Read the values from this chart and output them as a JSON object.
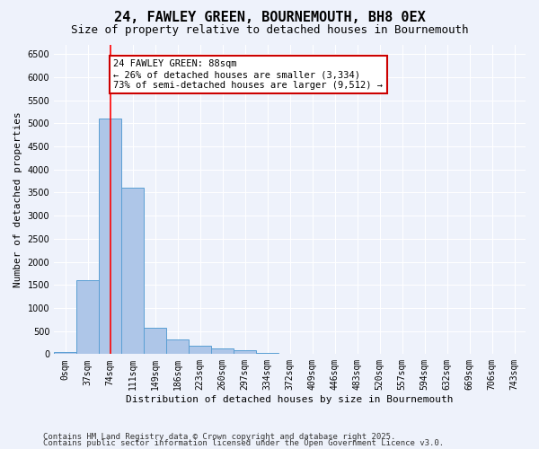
{
  "title1": "24, FAWLEY GREEN, BOURNEMOUTH, BH8 0EX",
  "title2": "Size of property relative to detached houses in Bournemouth",
  "xlabel": "Distribution of detached houses by size in Bournemouth",
  "ylabel": "Number of detached properties",
  "bin_labels": [
    "0sqm",
    "37sqm",
    "74sqm",
    "111sqm",
    "149sqm",
    "186sqm",
    "223sqm",
    "260sqm",
    "297sqm",
    "334sqm",
    "372sqm",
    "409sqm",
    "446sqm",
    "483sqm",
    "520sqm",
    "557sqm",
    "594sqm",
    "632sqm",
    "669sqm",
    "706sqm",
    "743sqm"
  ],
  "bar_values": [
    50,
    1600,
    5100,
    3600,
    580,
    310,
    180,
    130,
    90,
    30,
    10,
    5,
    3,
    2,
    1,
    0,
    0,
    0,
    0,
    0,
    0
  ],
  "bar_color": "#aec6e8",
  "bar_edge_color": "#5a9fd4",
  "red_line_x": 2.0,
  "annotation_text": "24 FAWLEY GREEN: 88sqm\n← 26% of detached houses are smaller (3,334)\n73% of semi-detached houses are larger (9,512) →",
  "annotation_box_color": "#ffffff",
  "annotation_box_edge": "#cc0000",
  "ylim": [
    0,
    6700
  ],
  "yticks": [
    0,
    500,
    1000,
    1500,
    2000,
    2500,
    3000,
    3500,
    4000,
    4500,
    5000,
    5500,
    6000,
    6500
  ],
  "footer1": "Contains HM Land Registry data © Crown copyright and database right 2025.",
  "footer2": "Contains public sector information licensed under the Open Government Licence v3.0.",
  "background_color": "#eef2fb",
  "plot_bg_color": "#eef2fb",
  "grid_color": "#ffffff",
  "title1_fontsize": 11,
  "title2_fontsize": 9,
  "axis_label_fontsize": 8,
  "tick_fontsize": 7,
  "annotation_fontsize": 7.5,
  "footer_fontsize": 6.5
}
